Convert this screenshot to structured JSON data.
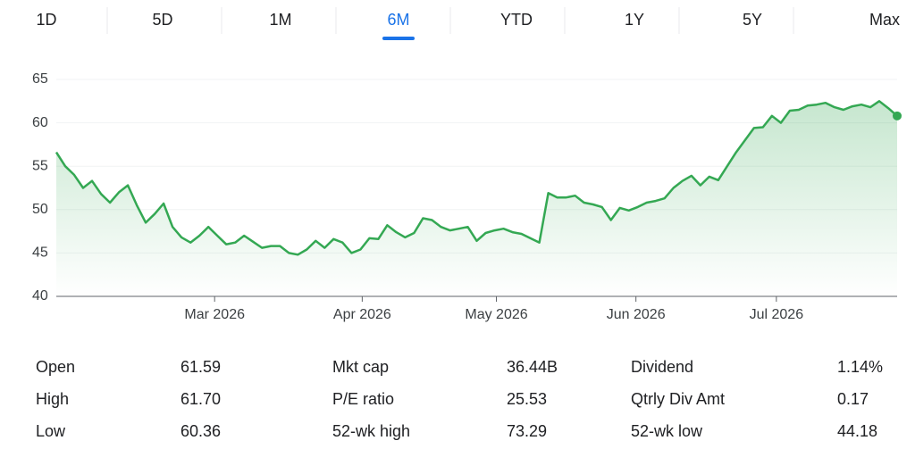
{
  "tabs": [
    "1D",
    "5D",
    "1M",
    "6M",
    "YTD",
    "1Y",
    "5Y",
    "Max"
  ],
  "active_tab": 3,
  "chart_data": {
    "type": "line",
    "color": "#34a853",
    "values": [
      56.6,
      55,
      54,
      52.5,
      53.3,
      51.8,
      50.8,
      52,
      52.8,
      50.5,
      48.5,
      49.5,
      50.7,
      48,
      46.8,
      46.2,
      47,
      48,
      47,
      46,
      46.2,
      47,
      46.3,
      45.6,
      45.8,
      45.8,
      45,
      44.8,
      45.4,
      46.4,
      45.6,
      46.6,
      46.2,
      45,
      45.4,
      46.7,
      46.6,
      48.2,
      47.4,
      46.8,
      47.3,
      49,
      48.8,
      48,
      47.6,
      47.8,
      48,
      46.4,
      47.3,
      47.6,
      47.8,
      47.4,
      47.2,
      46.7,
      46.2,
      51.9,
      51.4,
      51.4,
      51.6,
      50.8,
      50.6,
      50.3,
      48.8,
      50.2,
      49.9,
      50.3,
      50.8,
      51,
      51.3,
      52.5,
      53.3,
      53.9,
      52.8,
      53.8,
      53.4,
      55,
      56.6,
      58,
      59.4,
      59.5,
      60.8,
      60,
      61.4,
      61.5,
      62,
      62.1,
      62.3,
      61.8,
      61.5,
      61.9,
      62.1,
      61.8,
      62.5,
      61.7,
      60.8
    ],
    "xlim": [
      0,
      94
    ],
    "xticks": [
      {
        "value": 17.7,
        "label": "Mar 2026"
      },
      {
        "value": 34.2,
        "label": "Apr 2026"
      },
      {
        "value": 49.2,
        "label": "May 2026"
      },
      {
        "value": 64.8,
        "label": "Jun 2026"
      },
      {
        "value": 80.5,
        "label": "Jul 2026"
      }
    ],
    "ylim": [
      40,
      65
    ],
    "yticks": [
      40,
      45,
      50,
      55,
      60,
      65
    ],
    "grid": true
  },
  "stats": {
    "rows": [
      [
        {
          "label": "Open",
          "value": "61.59"
        },
        {
          "label": "Mkt cap",
          "value": "36.44B"
        },
        {
          "label": "Dividend",
          "value": "1.14%"
        }
      ],
      [
        {
          "label": "High",
          "value": "61.70"
        },
        {
          "label": "P/E ratio",
          "value": "25.53"
        },
        {
          "label": "Qtrly Div Amt",
          "value": "0.17"
        }
      ],
      [
        {
          "label": "Low",
          "value": "60.36"
        },
        {
          "label": "52-wk high",
          "value": "73.29"
        },
        {
          "label": "52-wk low",
          "value": "44.18"
        }
      ]
    ]
  }
}
